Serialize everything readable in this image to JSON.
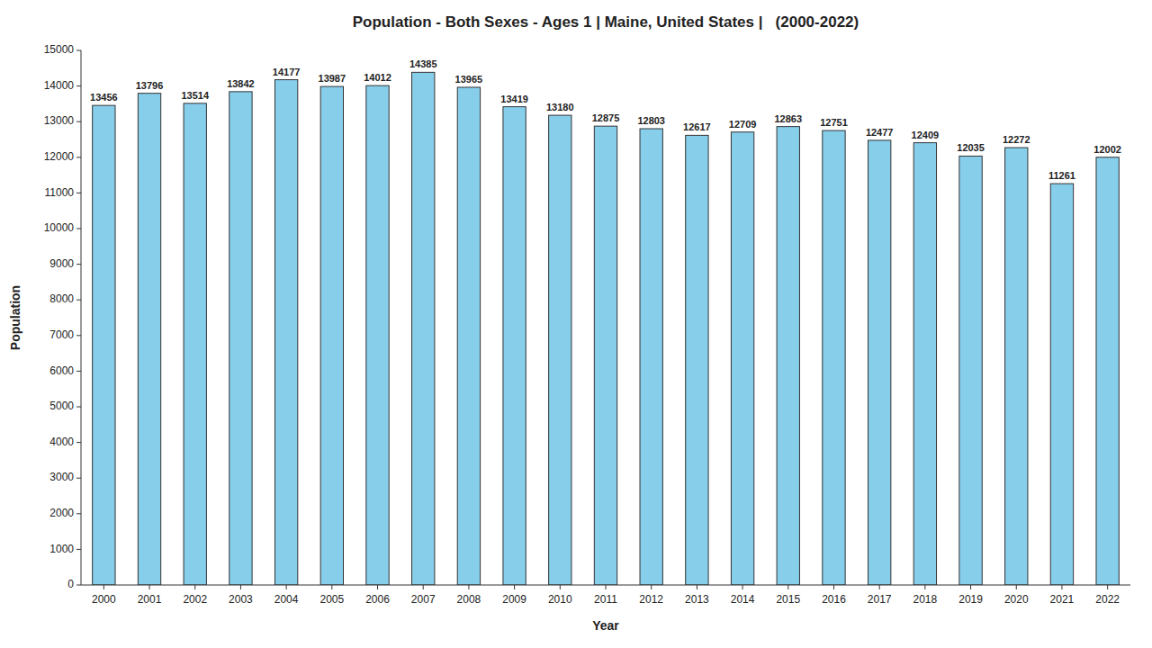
{
  "chart_data": {
    "type": "bar",
    "title": "Population - Both Sexes - Ages 1 | Maine, United States |   (2000-2022)",
    "xlabel": "Year",
    "ylabel": "Population",
    "categories": [
      "2000",
      "2001",
      "2002",
      "2003",
      "2004",
      "2005",
      "2006",
      "2007",
      "2008",
      "2009",
      "2010",
      "2011",
      "2012",
      "2013",
      "2014",
      "2015",
      "2016",
      "2017",
      "2018",
      "2019",
      "2020",
      "2021",
      "2022"
    ],
    "values": [
      13456,
      13796,
      13514,
      13842,
      14177,
      13987,
      14012,
      14385,
      13965,
      13419,
      13180,
      12875,
      12803,
      12617,
      12709,
      12863,
      12751,
      12477,
      12409,
      12035,
      12272,
      11261,
      12002
    ],
    "color": "#87CEEB",
    "ylim": [
      0,
      15000
    ],
    "yticks": [
      0,
      1000,
      2000,
      3000,
      4000,
      5000,
      6000,
      7000,
      8000,
      9000,
      10000,
      11000,
      12000,
      13000,
      14000,
      15000
    ],
    "grid": false,
    "data_labels": true
  }
}
